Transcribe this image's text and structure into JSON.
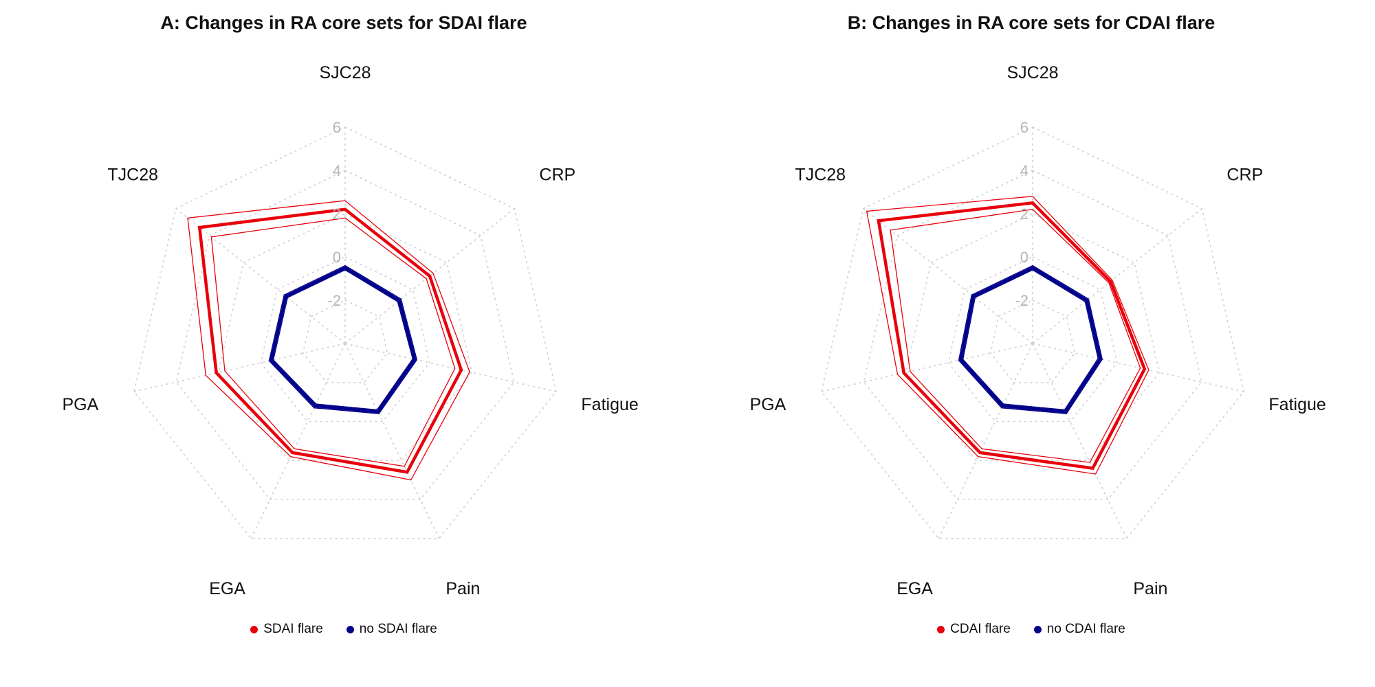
{
  "colors": {
    "flare": "#e8000b",
    "no_flare": "#00008b",
    "grid": "#cfcfcf",
    "tick": "#b5b5b5"
  },
  "chart_data": [
    {
      "type": "radar",
      "title": "A: Changes in RA core sets for SDAI flare",
      "axes": [
        "SJC28",
        "CRP",
        "Fatigue",
        "Pain",
        "EGA",
        "PGA",
        "TJC28"
      ],
      "rlim": [
        -4,
        6
      ],
      "rticks": [
        -2,
        0,
        2,
        4,
        6
      ],
      "grid": true,
      "legend_position": "bottom",
      "series": [
        {
          "name": "SDAI flare",
          "color": "#e8000b",
          "values": [
            2.2,
            1.0,
            1.5,
            2.6,
            1.6,
            2.1,
            4.6
          ],
          "lower": [
            1.8,
            0.8,
            1.2,
            2.3,
            1.4,
            1.7,
            3.9
          ],
          "upper": [
            2.6,
            1.2,
            1.9,
            3.0,
            1.8,
            2.6,
            5.3
          ]
        },
        {
          "name": "no SDAI flare",
          "color": "#00008b",
          "values": [
            -0.5,
            -0.8,
            -0.7,
            -0.5,
            -0.8,
            -0.5,
            -0.5
          ],
          "lower": [
            -0.6,
            -0.9,
            -0.8,
            -0.6,
            -0.9,
            -0.6,
            -0.6
          ],
          "upper": [
            -0.4,
            -0.7,
            -0.6,
            -0.4,
            -0.7,
            -0.4,
            -0.4
          ]
        }
      ]
    },
    {
      "type": "radar",
      "title": "B: Changes in RA core sets for CDAI flare",
      "axes": [
        "SJC28",
        "CRP",
        "Fatigue",
        "Pain",
        "EGA",
        "PGA",
        "TJC28"
      ],
      "rlim": [
        -4,
        6
      ],
      "rticks": [
        -2,
        0,
        2,
        4,
        6
      ],
      "grid": true,
      "legend_position": "bottom",
      "series": [
        {
          "name": "CDAI flare",
          "color": "#e8000b",
          "values": [
            2.5,
            0.6,
            1.3,
            2.4,
            1.6,
            2.1,
            5.1
          ],
          "lower": [
            2.2,
            0.5,
            1.1,
            2.1,
            1.4,
            1.8,
            4.4
          ],
          "upper": [
            2.8,
            0.7,
            1.5,
            2.7,
            1.8,
            2.4,
            5.8
          ]
        },
        {
          "name": "no CDAI flare",
          "color": "#00008b",
          "values": [
            -0.5,
            -0.8,
            -0.8,
            -0.5,
            -0.8,
            -0.6,
            -0.5
          ],
          "lower": [
            -0.6,
            -0.9,
            -0.9,
            -0.6,
            -0.9,
            -0.7,
            -0.6
          ],
          "upper": [
            -0.4,
            -0.7,
            -0.7,
            -0.4,
            -0.7,
            -0.5,
            -0.4
          ]
        }
      ]
    }
  ]
}
